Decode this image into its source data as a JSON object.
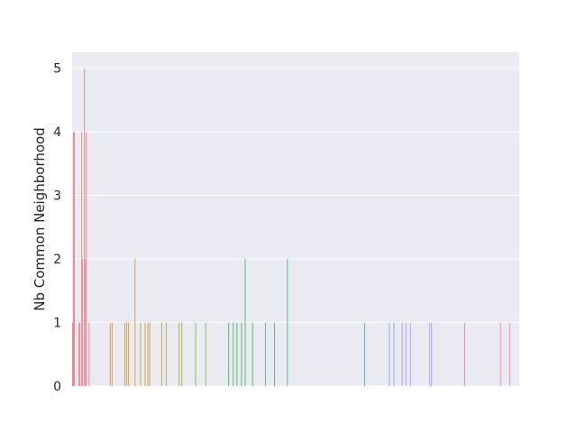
{
  "chart_data": {
    "type": "bar",
    "title": "",
    "xlabel": "",
    "ylabel": "Nb Common Neighborhood",
    "ylim": [
      0,
      5.25
    ],
    "yticks": [
      "0",
      "1",
      "2",
      "3",
      "4",
      "5"
    ],
    "grid": true,
    "background": "#eaeaf2",
    "gridcolor": "#ffffff",
    "x_tick_labels_visible": false,
    "num_categories": 487,
    "bars": [
      {
        "i": 0,
        "v": 1,
        "c": "#e8838a"
      },
      {
        "i": 1,
        "v": 4,
        "c": "#e8838a"
      },
      {
        "i": 2,
        "v": 4,
        "c": "#e8838a"
      },
      {
        "i": 7,
        "v": 1,
        "c": "#e8838a"
      },
      {
        "i": 8,
        "v": 1,
        "c": "#e8838a"
      },
      {
        "i": 10,
        "v": 4,
        "c": "#e8838a"
      },
      {
        "i": 11,
        "v": 2,
        "c": "#e8838a"
      },
      {
        "i": 13,
        "v": 5,
        "c": "#e8838a"
      },
      {
        "i": 14,
        "v": 2,
        "c": "#e8838a"
      },
      {
        "i": 15,
        "v": 4,
        "c": "#e8838a"
      },
      {
        "i": 18,
        "v": 1,
        "c": "#e8838a"
      },
      {
        "i": 41,
        "v": 1,
        "c": "#d79a45"
      },
      {
        "i": 43,
        "v": 1,
        "c": "#d79a45"
      },
      {
        "i": 57,
        "v": 1,
        "c": "#d79a45"
      },
      {
        "i": 59,
        "v": 1,
        "c": "#d79a45"
      },
      {
        "i": 61,
        "v": 1,
        "c": "#d79a45"
      },
      {
        "i": 68,
        "v": 2,
        "c": "#d79a45"
      },
      {
        "i": 74,
        "v": 1,
        "c": "#c8a040"
      },
      {
        "i": 79,
        "v": 1,
        "c": "#c8a040"
      },
      {
        "i": 82,
        "v": 1,
        "c": "#c8a040"
      },
      {
        "i": 84,
        "v": 1,
        "c": "#c8a040"
      },
      {
        "i": 97,
        "v": 1,
        "c": "#b8a845"
      },
      {
        "i": 102,
        "v": 1,
        "c": "#b8a845"
      },
      {
        "i": 116,
        "v": 1,
        "c": "#a6ad48"
      },
      {
        "i": 119,
        "v": 1,
        "c": "#a6ad48"
      },
      {
        "i": 134,
        "v": 1,
        "c": "#8fae4d"
      },
      {
        "i": 145,
        "v": 1,
        "c": "#8fae4d"
      },
      {
        "i": 170,
        "v": 1,
        "c": "#4eb36a"
      },
      {
        "i": 175,
        "v": 1,
        "c": "#4eb36a"
      },
      {
        "i": 179,
        "v": 1,
        "c": "#4eb36a"
      },
      {
        "i": 184,
        "v": 1,
        "c": "#4eb36a"
      },
      {
        "i": 188,
        "v": 2,
        "c": "#4eb36a"
      },
      {
        "i": 196,
        "v": 1,
        "c": "#4eb36a"
      },
      {
        "i": 210,
        "v": 1,
        "c": "#4eb38c"
      },
      {
        "i": 220,
        "v": 1,
        "c": "#4eb38c"
      },
      {
        "i": 234,
        "v": 2,
        "c": "#4eb38c"
      },
      {
        "i": 318,
        "v": 1,
        "c": "#4ea8c4"
      },
      {
        "i": 345,
        "v": 1,
        "c": "#8fa0f0"
      },
      {
        "i": 350,
        "v": 1,
        "c": "#8fa0f0"
      },
      {
        "i": 359,
        "v": 1,
        "c": "#9f9bf0"
      },
      {
        "i": 363,
        "v": 1,
        "c": "#a89af0"
      },
      {
        "i": 368,
        "v": 1,
        "c": "#b59af0"
      },
      {
        "i": 389,
        "v": 1,
        "c": "#c88ee8"
      },
      {
        "i": 391,
        "v": 1,
        "c": "#c88ee8"
      },
      {
        "i": 427,
        "v": 1,
        "c": "#e47ec8"
      },
      {
        "i": 466,
        "v": 1,
        "c": "#ec80b0"
      },
      {
        "i": 476,
        "v": 1,
        "c": "#ec80b0"
      }
    ]
  }
}
